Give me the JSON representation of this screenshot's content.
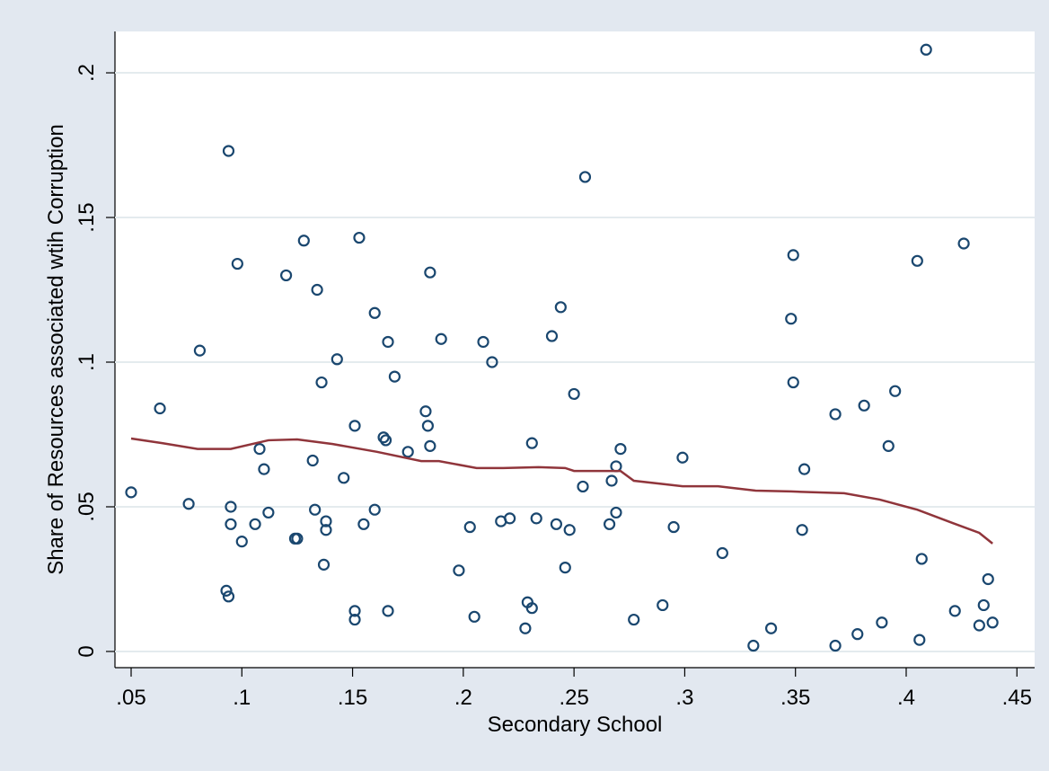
{
  "chart_data": {
    "type": "scatter",
    "x_label": "Secondary School",
    "y_label": "Share of Resources associated wtih Corruption",
    "xlim": [
      0.0427,
      0.458
    ],
    "ylim": [
      -0.0056,
      0.2143
    ],
    "xticks": [
      {
        "value": 0.05,
        "label": ".05"
      },
      {
        "value": 0.1,
        "label": ".1"
      },
      {
        "value": 0.15,
        "label": ".15"
      },
      {
        "value": 0.2,
        "label": ".2"
      },
      {
        "value": 0.25,
        "label": ".25"
      },
      {
        "value": 0.3,
        "label": ".3"
      },
      {
        "value": 0.35,
        "label": ".35"
      },
      {
        "value": 0.4,
        "label": ".4"
      },
      {
        "value": 0.45,
        "label": ".45"
      }
    ],
    "yticks": [
      0,
      {
        "value": 0.05,
        "label": ".05"
      },
      {
        "value": 0.1,
        "label": ".1"
      },
      {
        "value": 0.15,
        "label": ".15"
      },
      {
        "value": 0.2,
        "label": ".2"
      }
    ],
    "grid": true,
    "series": [
      {
        "type": "scatter",
        "color": "#1a476f",
        "x": [
          0.05,
          0.063,
          0.076,
          0.081,
          0.094,
          0.093,
          0.094,
          0.095,
          0.095,
          0.098,
          0.1,
          0.106,
          0.108,
          0.11,
          0.112,
          0.12,
          0.124,
          0.125,
          0.128,
          0.132,
          0.133,
          0.134,
          0.136,
          0.138,
          0.138,
          0.137,
          0.143,
          0.146,
          0.151,
          0.151,
          0.151,
          0.153,
          0.155,
          0.16,
          0.16,
          0.164,
          0.165,
          0.166,
          0.166,
          0.169,
          0.175,
          0.183,
          0.184,
          0.185,
          0.185,
          0.19,
          0.198,
          0.203,
          0.205,
          0.209,
          0.213,
          0.217,
          0.221,
          0.228,
          0.229,
          0.231,
          0.231,
          0.233,
          0.24,
          0.242,
          0.244,
          0.246,
          0.248,
          0.25,
          0.254,
          0.255,
          0.266,
          0.267,
          0.269,
          0.269,
          0.271,
          0.277,
          0.29,
          0.295,
          0.299,
          0.317,
          0.331,
          0.339,
          0.348,
          0.349,
          0.349,
          0.353,
          0.354,
          0.368,
          0.368,
          0.378,
          0.381,
          0.389,
          0.392,
          0.395,
          0.405,
          0.406,
          0.407,
          0.409,
          0.422,
          0.426,
          0.433,
          0.435,
          0.437,
          0.439
        ],
        "values": [
          0.055,
          0.084,
          0.051,
          0.104,
          0.173,
          0.021,
          0.019,
          0.05,
          0.044,
          0.134,
          0.038,
          0.044,
          0.07,
          0.063,
          0.048,
          0.13,
          0.039,
          0.039,
          0.142,
          0.066,
          0.049,
          0.125,
          0.093,
          0.045,
          0.042,
          0.03,
          0.101,
          0.06,
          0.078,
          0.014,
          0.011,
          0.143,
          0.044,
          0.049,
          0.117,
          0.074,
          0.073,
          0.107,
          0.014,
          0.095,
          0.069,
          0.083,
          0.078,
          0.131,
          0.071,
          0.108,
          0.028,
          0.043,
          0.012,
          0.107,
          0.1,
          0.045,
          0.046,
          0.008,
          0.017,
          0.072,
          0.015,
          0.046,
          0.109,
          0.044,
          0.119,
          0.029,
          0.042,
          0.089,
          0.057,
          0.164,
          0.044,
          0.059,
          0.064,
          0.048,
          0.07,
          0.011,
          0.016,
          0.043,
          0.067,
          0.034,
          0.002,
          0.008,
          0.115,
          0.093,
          0.137,
          0.042,
          0.063,
          0.082,
          0.002,
          0.006,
          0.085,
          0.01,
          0.071,
          0.09,
          0.135,
          0.004,
          0.032,
          0.208,
          0.014,
          0.141,
          0.009,
          0.016,
          0.025,
          0.01
        ]
      },
      {
        "type": "line",
        "color": "#90353b",
        "x": [
          0.05,
          0.064,
          0.08,
          0.095,
          0.112,
          0.125,
          0.141,
          0.161,
          0.181,
          0.189,
          0.206,
          0.218,
          0.234,
          0.246,
          0.25,
          0.259,
          0.271,
          0.277,
          0.291,
          0.299,
          0.315,
          0.332,
          0.348,
          0.372,
          0.388,
          0.405,
          0.421,
          0.433,
          0.439
        ],
        "values": [
          0.0736,
          0.072,
          0.07,
          0.07,
          0.073,
          0.0733,
          0.0717,
          0.069,
          0.0658,
          0.0658,
          0.0634,
          0.0634,
          0.0637,
          0.0634,
          0.0624,
          0.0624,
          0.0624,
          0.059,
          0.0578,
          0.0571,
          0.0571,
          0.0556,
          0.0553,
          0.0547,
          0.0525,
          0.049,
          0.0444,
          0.041,
          0.0373
        ]
      }
    ]
  }
}
